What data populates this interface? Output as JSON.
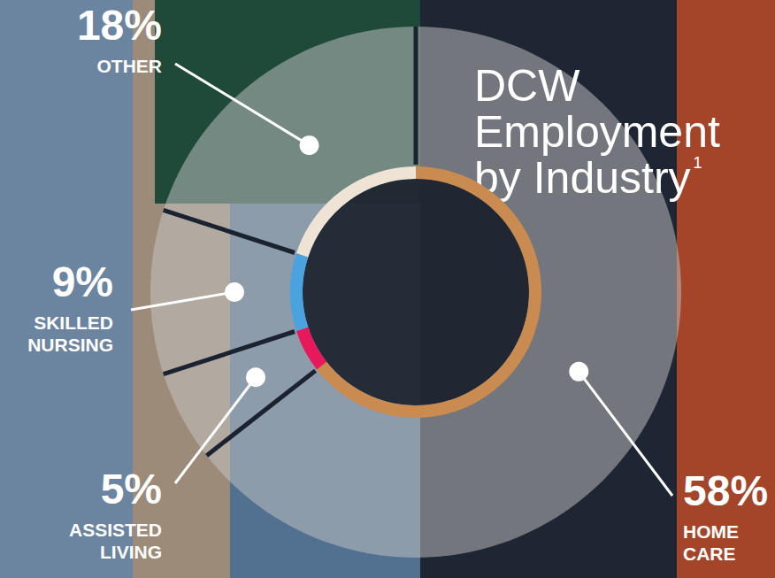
{
  "chart_data": {
    "type": "pie",
    "title": "DCW Employment by Industry",
    "title_note": "1",
    "categories": [
      "HOME CARE",
      "ASSISTED LIVING",
      "SKILLED NURSING",
      "OTHER"
    ],
    "values": [
      58,
      5,
      9,
      18
    ],
    "value_labels": [
      "58%",
      "5%",
      "9%",
      "18%"
    ],
    "colors": [
      "#c98b4f",
      "#e8185c",
      "#4aa3df",
      "#efe3d6"
    ],
    "data_labels": true
  }
}
